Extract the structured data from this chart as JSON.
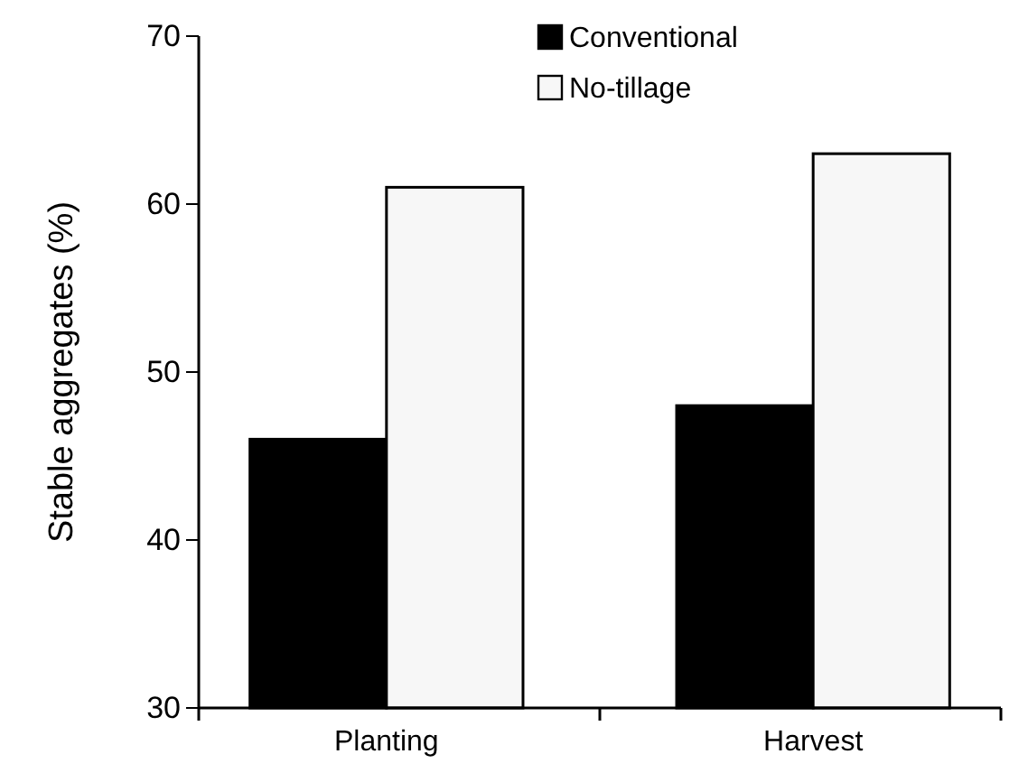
{
  "chart_data": {
    "type": "bar",
    "ylabel": "Stable aggregates (%)",
    "categories": [
      "Planting",
      "Harvest"
    ],
    "series": [
      {
        "name": "Conventional",
        "color": "#000000",
        "values": [
          46,
          48
        ]
      },
      {
        "name": "No-tillage",
        "color": "#f7f7f7",
        "values": [
          61,
          63
        ]
      }
    ],
    "ylim": [
      30,
      70
    ],
    "yticks": [
      30,
      40,
      50,
      60,
      70
    ],
    "grid": false,
    "legend": "top right"
  }
}
